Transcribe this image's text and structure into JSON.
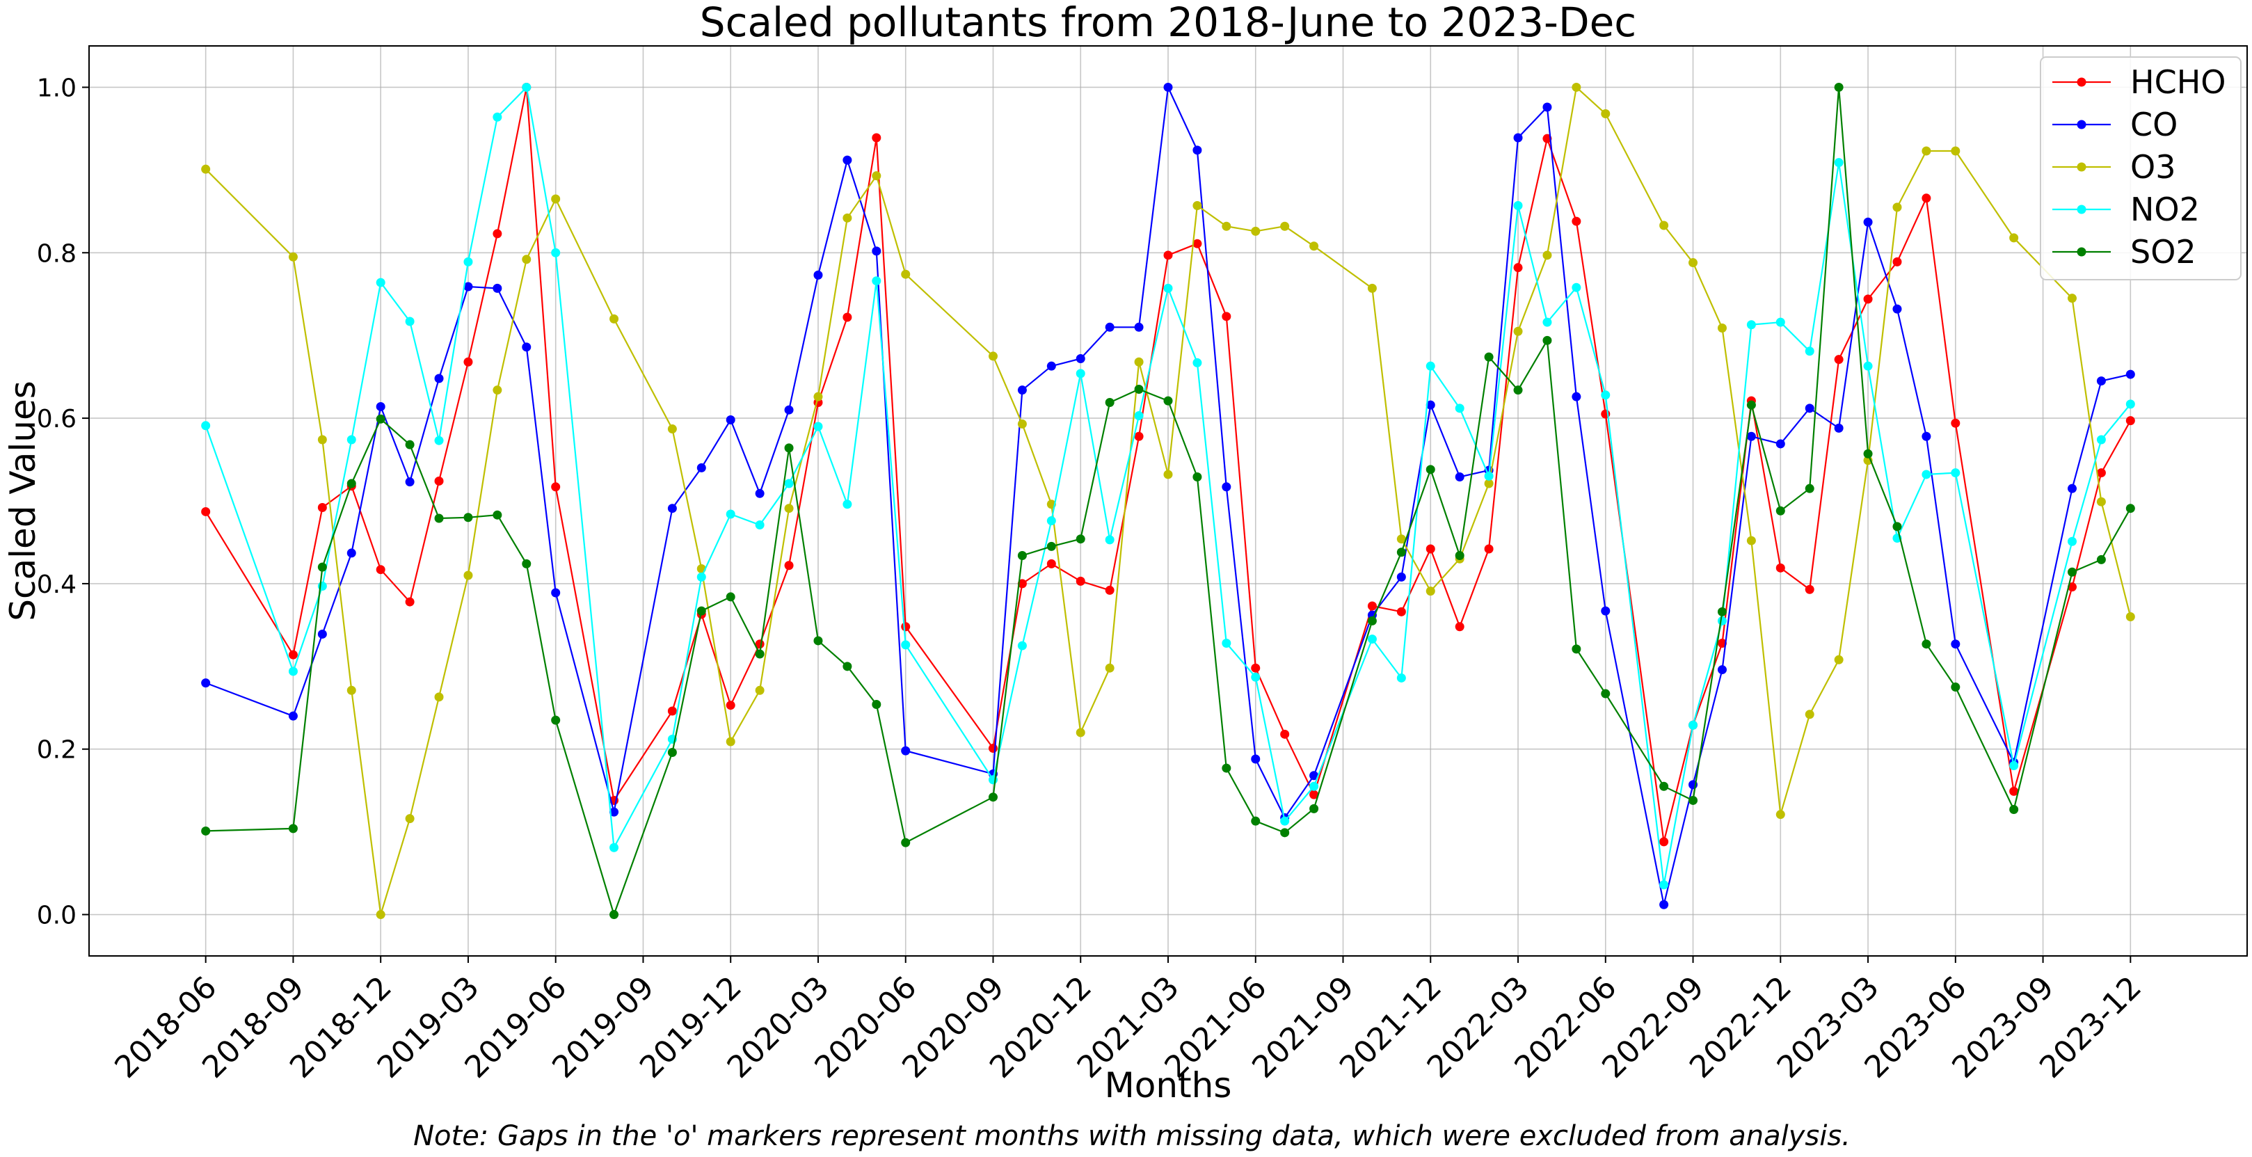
{
  "chart_data": {
    "type": "line",
    "title": "Scaled pollutants from 2018-June to 2023-Dec",
    "xlabel": "Months",
    "ylabel": "Scaled Values",
    "note": "Note: Gaps in the 'o' markers represent months with missing data, which were excluded from analysis.",
    "xlim": [
      "2018-02",
      "2024-04"
    ],
    "ylim": [
      -0.05,
      1.05
    ],
    "grid": true,
    "legend_position": "top-right",
    "yticks": [
      0.0,
      0.2,
      0.4,
      0.6,
      0.8,
      1.0
    ],
    "ytick_labels": [
      "0.0",
      "0.2",
      "0.4",
      "0.6",
      "0.8",
      "1.0"
    ],
    "xticks": [
      "2018-06",
      "2018-09",
      "2018-12",
      "2019-03",
      "2019-06",
      "2019-09",
      "2019-12",
      "2020-03",
      "2020-06",
      "2020-09",
      "2020-12",
      "2021-03",
      "2021-06",
      "2021-09",
      "2021-12",
      "2022-03",
      "2022-06",
      "2022-09",
      "2022-12",
      "2023-03",
      "2023-06",
      "2023-09",
      "2023-12"
    ],
    "x": [
      "2018-06",
      "2018-09",
      "2018-10",
      "2018-11",
      "2018-12",
      "2019-01",
      "2019-02",
      "2019-03",
      "2019-04",
      "2019-05",
      "2019-06",
      "2019-08",
      "2019-10",
      "2019-11",
      "2019-12",
      "2020-01",
      "2020-02",
      "2020-03",
      "2020-04",
      "2020-05",
      "2020-06",
      "2020-09",
      "2020-10",
      "2020-11",
      "2020-12",
      "2021-01",
      "2021-02",
      "2021-03",
      "2021-04",
      "2021-05",
      "2021-06",
      "2021-07",
      "2021-08",
      "2021-10",
      "2021-11",
      "2021-12",
      "2022-01",
      "2022-02",
      "2022-03",
      "2022-04",
      "2022-05",
      "2022-06",
      "2022-08",
      "2022-09",
      "2022-10",
      "2022-11",
      "2022-12",
      "2023-01",
      "2023-02",
      "2023-03",
      "2023-04",
      "2023-05",
      "2023-06",
      "2023-08",
      "2023-10",
      "2023-11",
      "2023-12"
    ],
    "series": [
      {
        "name": "HCHO",
        "color": "#ff0000",
        "values": [
          0.487,
          0.314,
          0.492,
          0.518,
          0.417,
          0.378,
          0.524,
          0.668,
          0.823,
          1.0,
          0.517,
          0.138,
          0.246,
          0.363,
          0.253,
          0.327,
          0.422,
          0.619,
          0.722,
          0.939,
          0.348,
          0.201,
          0.4,
          0.424,
          0.403,
          0.392,
          0.578,
          0.797,
          0.811,
          0.723,
          0.298,
          0.218,
          0.145,
          0.373,
          0.366,
          0.442,
          0.348,
          0.442,
          0.782,
          0.938,
          0.838,
          0.605,
          0.088,
          0.229,
          0.328,
          0.621,
          0.419,
          0.393,
          0.671,
          0.744,
          0.789,
          0.866,
          0.594,
          0.149,
          0.396,
          0.534,
          0.597
        ]
      },
      {
        "name": "CO",
        "color": "#0000ff",
        "values": [
          0.28,
          0.24,
          0.339,
          0.437,
          0.614,
          0.523,
          0.648,
          0.759,
          0.757,
          0.686,
          0.389,
          0.124,
          0.491,
          0.54,
          0.598,
          0.509,
          0.61,
          0.773,
          0.912,
          0.802,
          0.198,
          0.17,
          0.634,
          0.663,
          0.672,
          0.71,
          0.71,
          1.0,
          0.924,
          0.517,
          0.188,
          0.117,
          0.168,
          0.362,
          0.408,
          0.616,
          0.529,
          0.537,
          0.939,
          0.976,
          0.626,
          0.367,
          0.012,
          0.157,
          0.296,
          0.578,
          0.569,
          0.612,
          0.588,
          0.837,
          0.732,
          0.578,
          0.327,
          0.184,
          0.515,
          0.645,
          0.653
        ]
      },
      {
        "name": "O3",
        "color": "#bfbf00",
        "values": [
          0.901,
          0.795,
          0.574,
          0.271,
          0.0,
          0.116,
          0.263,
          0.41,
          0.634,
          0.792,
          0.865,
          0.72,
          0.587,
          0.418,
          0.209,
          0.271,
          0.491,
          0.626,
          0.842,
          0.893,
          0.774,
          0.675,
          0.593,
          0.496,
          0.22,
          0.298,
          0.668,
          0.532,
          0.857,
          0.832,
          0.826,
          0.832,
          0.808,
          0.757,
          0.454,
          0.391,
          0.43,
          0.521,
          0.705,
          0.797,
          1.0,
          0.968,
          0.833,
          0.788,
          0.709,
          0.452,
          0.121,
          0.242,
          0.308,
          0.549,
          0.855,
          0.923,
          0.923,
          0.818,
          0.745,
          0.499,
          0.36
        ]
      },
      {
        "name": "NO2",
        "color": "#00ffff",
        "values": [
          0.591,
          0.294,
          0.397,
          0.574,
          0.764,
          0.717,
          0.573,
          0.789,
          0.964,
          1.0,
          0.8,
          0.081,
          0.212,
          0.408,
          0.484,
          0.471,
          0.521,
          0.59,
          0.496,
          0.766,
          0.326,
          0.163,
          0.325,
          0.476,
          0.654,
          0.453,
          0.603,
          0.757,
          0.667,
          0.328,
          0.287,
          0.113,
          0.155,
          0.333,
          0.286,
          0.663,
          0.612,
          0.53,
          0.857,
          0.716,
          0.758,
          0.628,
          0.036,
          0.229,
          0.355,
          0.713,
          0.716,
          0.681,
          0.909,
          0.663,
          0.455,
          0.532,
          0.534,
          0.18,
          0.451,
          0.574,
          0.617
        ]
      },
      {
        "name": "SO2",
        "color": "#008000",
        "values": [
          0.101,
          0.104,
          0.42,
          0.521,
          0.599,
          0.568,
          0.479,
          0.48,
          0.483,
          0.424,
          0.235,
          0.0,
          0.196,
          0.367,
          0.384,
          0.315,
          0.564,
          0.331,
          0.3,
          0.254,
          0.087,
          0.142,
          0.434,
          0.445,
          0.454,
          0.619,
          0.635,
          0.621,
          0.529,
          0.177,
          0.113,
          0.099,
          0.128,
          0.355,
          0.438,
          0.538,
          0.434,
          0.674,
          0.634,
          0.694,
          0.321,
          0.267,
          0.155,
          0.138,
          0.366,
          0.616,
          0.488,
          0.515,
          1.0,
          0.557,
          0.469,
          0.327,
          0.275,
          0.127,
          0.414,
          0.429,
          0.491
        ]
      }
    ]
  }
}
